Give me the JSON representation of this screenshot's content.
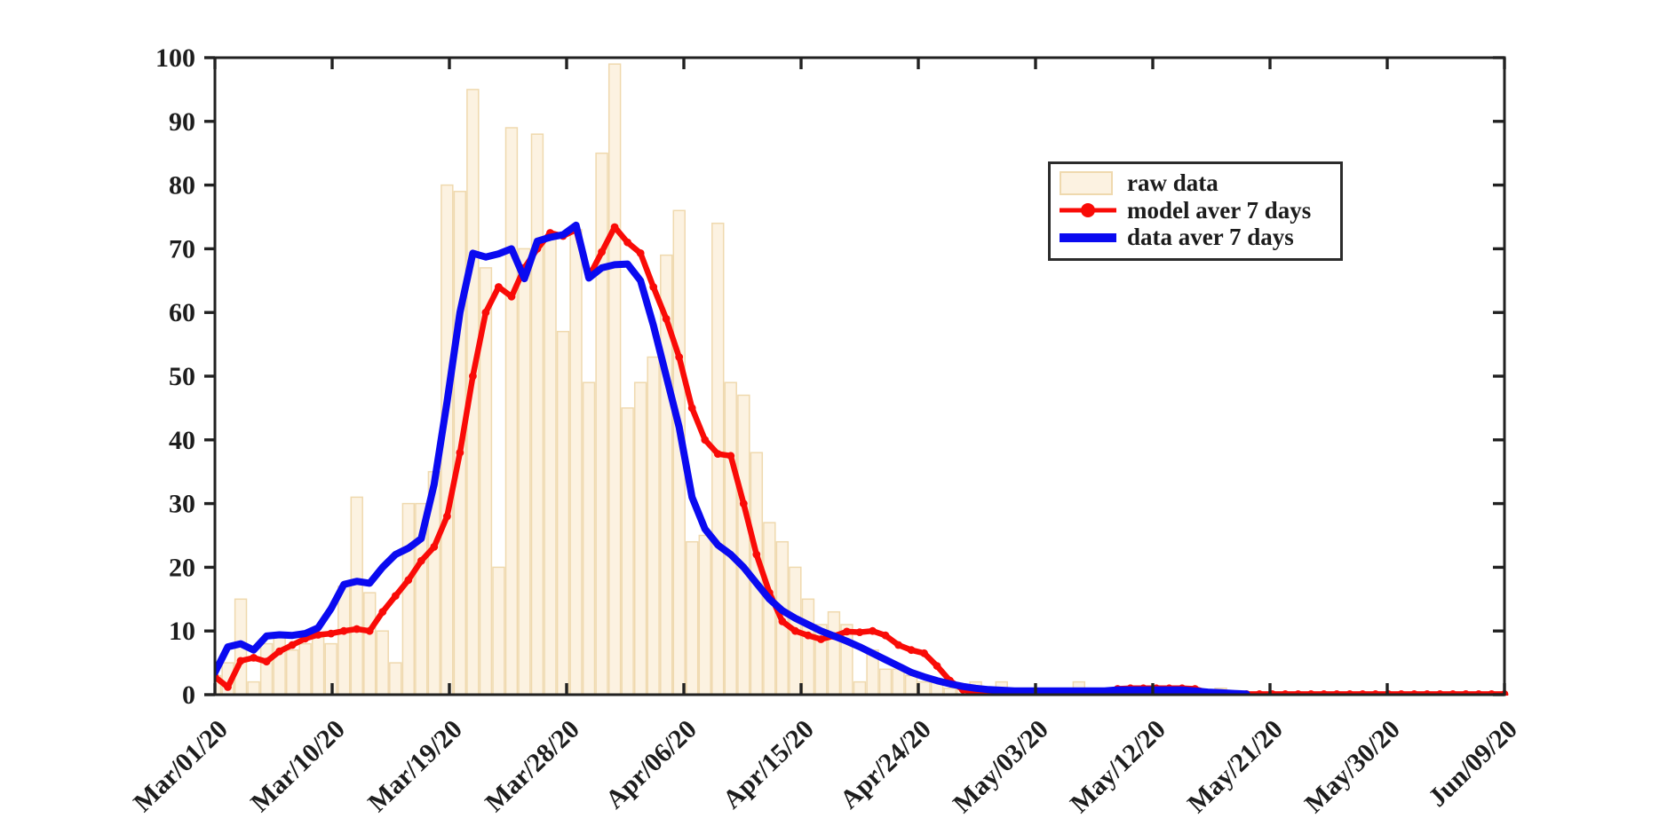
{
  "figure": {
    "background": "#ffffff",
    "axis_color": "#212121",
    "tick_label_color": "#1d1d1d"
  },
  "legend": {
    "position": "upper right",
    "items": [
      {
        "key": "raw-swatch",
        "label": "raw data"
      },
      {
        "key": "model-swatch",
        "label": "model aver 7 days"
      },
      {
        "key": "data-swatch",
        "label": "data aver 7 days"
      }
    ]
  },
  "chart_data": {
    "type": "bar+line combo (daily epidemic curve with 7-day averages)",
    "x_start_label": "Mar/01/20",
    "x_end_label": "Jun/09/20",
    "x_tick_labels": [
      "Mar/01/20",
      "Mar/10/20",
      "Mar/19/20",
      "Mar/28/20",
      "Apr/06/20",
      "Apr/15/20",
      "Apr/24/20",
      "May/03/20",
      "May/12/20",
      "May/21/20",
      "May/30/20",
      "Jun/09/20"
    ],
    "y_tick_labels": [
      "0",
      "10",
      "20",
      "30",
      "40",
      "50",
      "60",
      "70",
      "80",
      "90",
      "100"
    ],
    "ylim": [
      0,
      100
    ],
    "xlim_days": [
      0,
      100
    ],
    "grid": "off",
    "legend_position": "upper right",
    "series": [
      {
        "name": "raw data",
        "type": "bar",
        "fill": "#fcf2e1",
        "edge": "#efd9ae",
        "values": [
          3,
          5,
          15,
          2,
          8,
          9,
          7,
          8,
          9,
          8,
          17,
          31,
          16,
          10,
          5,
          30,
          30,
          35,
          80,
          79,
          95,
          67,
          20,
          89,
          70,
          88,
          72,
          57,
          73,
          49,
          85,
          99,
          45,
          49,
          53,
          69,
          76,
          24,
          25,
          74,
          49,
          47,
          38,
          27,
          24,
          20,
          15,
          11,
          13,
          11,
          2,
          7,
          4,
          4,
          3,
          2,
          2,
          1,
          1,
          2,
          1,
          2,
          1,
          0,
          1,
          1,
          0,
          2,
          1,
          0,
          1,
          1,
          1,
          1,
          0,
          1,
          0,
          0,
          1,
          0,
          0,
          0,
          0,
          0,
          0,
          0,
          0,
          0,
          0,
          0,
          0,
          0,
          0,
          0,
          0,
          0,
          0,
          0,
          0,
          0,
          0
        ]
      },
      {
        "name": "model aver 7 days",
        "type": "line",
        "color": "#f90b07",
        "marker": "filled-circle",
        "values": [
          2.8,
          1.2,
          5.3,
          5.8,
          5.2,
          6.8,
          7.8,
          8.8,
          9.4,
          9.6,
          10,
          10.3,
          10,
          13,
          15.5,
          18,
          21,
          23.2,
          28,
          38,
          50,
          60,
          64,
          62.5,
          67,
          70,
          72.5,
          72,
          73,
          65.6,
          69.5,
          73.4,
          71,
          69.3,
          64,
          59,
          53,
          45,
          40,
          37.8,
          37.5,
          30,
          22,
          16,
          11.5,
          10,
          9.3,
          8.7,
          9.2,
          9.9,
          9.8,
          10,
          9.3,
          7.8,
          7,
          6.5,
          4.5,
          2.2,
          0.8,
          0.3,
          0.15,
          0.12,
          0.12,
          0.12,
          0.12,
          0.12,
          0.12,
          0.12,
          0.12,
          0.12,
          0.9,
          1,
          1,
          1,
          1,
          1,
          0.9,
          0.3,
          0.12,
          0.1,
          0.08,
          0.08,
          0.08,
          0.08,
          0.08,
          0.08,
          0.08,
          0.08,
          0.08,
          0.08,
          0.08,
          0.08,
          0.08,
          0.08,
          0.08,
          0.08,
          0.08,
          0.08,
          0.08,
          0.08,
          0.08
        ]
      },
      {
        "name": "data aver 7 days",
        "type": "line",
        "color": "#0a0af0",
        "marker": "none",
        "values": [
          3.5,
          7.5,
          8,
          7,
          9.2,
          9.4,
          9.3,
          9.6,
          10.5,
          13.5,
          17.3,
          17.8,
          17.5,
          20,
          22,
          23,
          24.5,
          33,
          46,
          60,
          69.3,
          68.7,
          69.2,
          70,
          65.3,
          71.2,
          71.8,
          72.2,
          73.7,
          65.4,
          67,
          67.5,
          67.6,
          65,
          58,
          50,
          42,
          31,
          26,
          23.5,
          22,
          20,
          17.5,
          15,
          13.2,
          12,
          11,
          10,
          9.2,
          8.4,
          7.5,
          6.5,
          5.5,
          4.5,
          3.5,
          2.8,
          2.2,
          1.7,
          1.3,
          1,
          0.8,
          0.7,
          0.6,
          0.6,
          0.6,
          0.6,
          0.6,
          0.6,
          0.6,
          0.6,
          0.75,
          0.75,
          0.75,
          0.75,
          0.75,
          0.75,
          0.6,
          0.4,
          0.3,
          0.2,
          0.1
        ]
      }
    ]
  }
}
